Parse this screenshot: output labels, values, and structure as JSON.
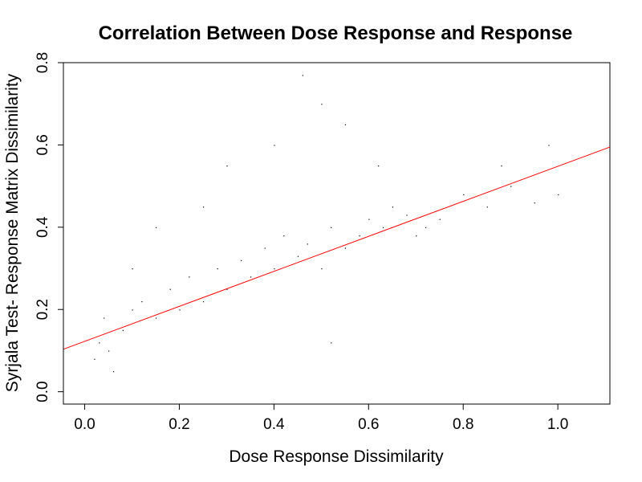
{
  "chart_data": {
    "type": "scatter",
    "title": "Correlation Between Dose Response and Response",
    "xlabel": "Dose Response Dissimilarity",
    "ylabel": "Syrjala Test- Response Matrix Dissimilarity",
    "xlim": [
      -0.045,
      1.11
    ],
    "ylim": [
      -0.03,
      0.8
    ],
    "x_ticks": [
      0.0,
      0.2,
      0.4,
      0.6,
      0.8,
      1.0
    ],
    "x_tick_labels": [
      "0.0",
      "0.2",
      "0.4",
      "0.6",
      "0.8",
      "1.0"
    ],
    "y_ticks": [
      0.0,
      0.2,
      0.4,
      0.6,
      0.8
    ],
    "y_tick_labels": [
      "0.0",
      "0.2",
      "0.4",
      "0.6",
      "0.8"
    ],
    "grid": false,
    "legend": "none",
    "point_color": "#000000",
    "regression_color": "#ff0000",
    "series": [
      {
        "kind": "points",
        "x": [
          0.02,
          0.03,
          0.05,
          0.04,
          0.08,
          0.1,
          0.12,
          0.15,
          0.18,
          0.2,
          0.22,
          0.25,
          0.28,
          0.3,
          0.33,
          0.35,
          0.38,
          0.4,
          0.42,
          0.45,
          0.47,
          0.5,
          0.52,
          0.55,
          0.58,
          0.6,
          0.63,
          0.65,
          0.68,
          0.7,
          0.75,
          0.8,
          0.85,
          0.9,
          0.95,
          1.0,
          0.46,
          0.5,
          0.52,
          0.3,
          0.15,
          0.06,
          0.1,
          0.25,
          0.4,
          0.55,
          0.62,
          0.72,
          0.88,
          0.98
        ],
        "y": [
          0.08,
          0.12,
          0.1,
          0.18,
          0.15,
          0.2,
          0.22,
          0.18,
          0.25,
          0.2,
          0.28,
          0.22,
          0.3,
          0.25,
          0.32,
          0.28,
          0.35,
          0.3,
          0.38,
          0.33,
          0.36,
          0.3,
          0.4,
          0.35,
          0.38,
          0.42,
          0.4,
          0.45,
          0.43,
          0.38,
          0.42,
          0.48,
          0.45,
          0.5,
          0.46,
          0.48,
          0.77,
          0.7,
          0.12,
          0.55,
          0.4,
          0.05,
          0.3,
          0.45,
          0.6,
          0.65,
          0.55,
          0.4,
          0.55,
          0.6
        ]
      },
      {
        "kind": "regression_line",
        "intercept": 0.1225,
        "slope": 0.4255
      }
    ]
  }
}
